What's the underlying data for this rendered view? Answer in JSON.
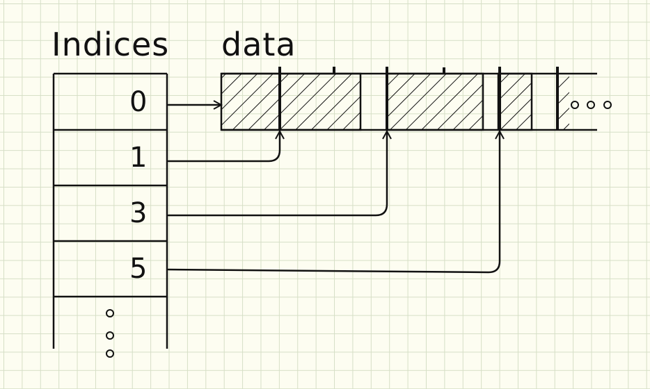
{
  "indices": {
    "title": "Indices",
    "rows": [
      {
        "value": "0"
      },
      {
        "value": "1"
      },
      {
        "value": "3"
      },
      {
        "value": "5"
      }
    ],
    "continuation": "ellipsis-vertical"
  },
  "data": {
    "title": "data",
    "continuation": "ellipsis-horizontal"
  },
  "colors": {
    "ink": "#111111",
    "paper": "#fdfdf1",
    "grid": "#d6dfc6"
  }
}
